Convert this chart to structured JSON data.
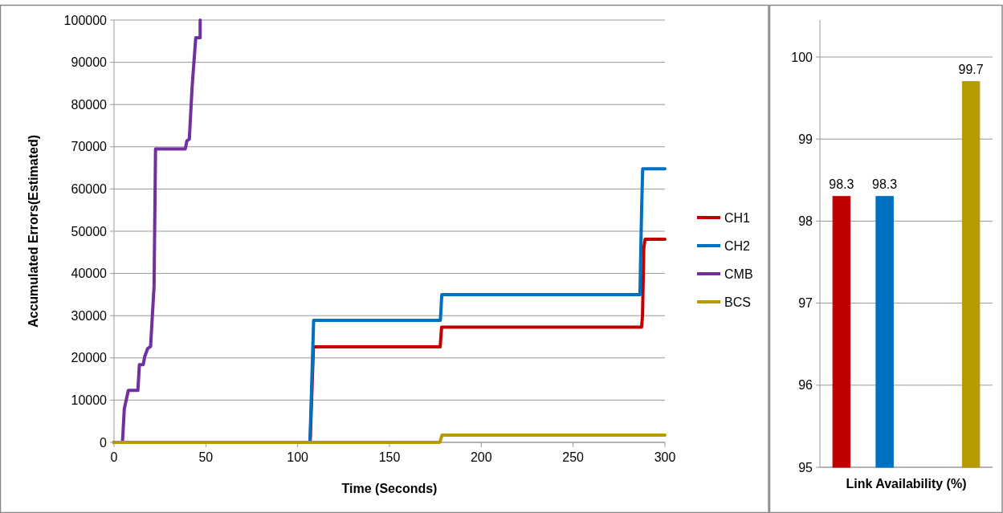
{
  "chart_data": [
    {
      "type": "line",
      "xlabel": "Time (Seconds)",
      "ylabel": "Accumulated Errors(Estimated)",
      "xlim": [
        0,
        300
      ],
      "ylim": [
        0,
        100000
      ],
      "xticks": [
        0,
        50,
        100,
        150,
        200,
        250,
        300
      ],
      "yticks": [
        0,
        10000,
        20000,
        30000,
        40000,
        50000,
        60000,
        70000,
        80000,
        90000,
        100000
      ],
      "grid": "y",
      "legend": "right",
      "marker": "none",
      "line_style": "solid",
      "series": [
        {
          "name": "CH1",
          "color": "#c00000",
          "x": [
            0,
            106.8,
            108.6,
            177.6,
            178.4,
            287.3,
            287.8,
            288.5,
            289.2,
            300
          ],
          "values": [
            0,
            0,
            22600,
            22600,
            27300,
            27300,
            30000,
            46000,
            48100,
            48100
          ]
        },
        {
          "name": "CH2",
          "color": "#0070c0",
          "x": [
            0,
            106.7,
            108.7,
            177.7,
            178.5,
            286.4,
            287.3,
            287.9,
            300
          ],
          "values": [
            0,
            0,
            28900,
            28900,
            35000,
            35000,
            55000,
            64800,
            64800
          ]
        },
        {
          "name": "CMB",
          "color": "#7030a0",
          "x": [
            0,
            4.6,
            5.6,
            7.8,
            13.0,
            13.8,
            15.9,
            16.7,
            18.3,
            19.9,
            21.8,
            22.6,
            38.8,
            39.7,
            41.0,
            42.5,
            43.2,
            44.5,
            46.9,
            46.9
          ],
          "values": [
            0,
            0,
            8000,
            12300,
            12300,
            18400,
            18400,
            20300,
            22200,
            22700,
            37000,
            69500,
            69500,
            71400,
            71800,
            84000,
            88200,
            95800,
            95800,
            100000
          ]
        },
        {
          "name": "BCS",
          "color": "#b59a00",
          "x": [
            0,
            177.4,
            178.6,
            300
          ],
          "values": [
            0,
            0,
            1700,
            1700
          ]
        }
      ]
    },
    {
      "type": "bar",
      "xlabel": "Link Availability (%)",
      "categories": [
        null,
        null,
        null,
        null
      ],
      "values": [
        98.3,
        98.3,
        95,
        99.7
      ],
      "colors": [
        "#c00000",
        "#0070c0",
        "#7030a0",
        "#b59a00"
      ],
      "value_labels": [
        "98.3",
        "98.3",
        null,
        "99.7"
      ],
      "ylim": [
        95,
        100.45
      ],
      "yticks": [
        95,
        96,
        97,
        98,
        99,
        100
      ],
      "grid": "y"
    }
  ]
}
